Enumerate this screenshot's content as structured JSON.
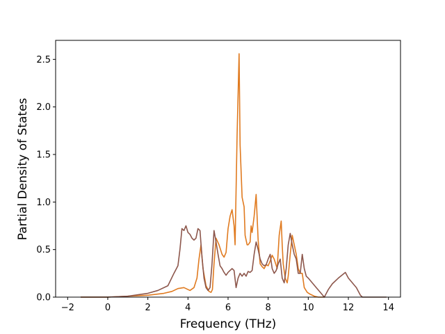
{
  "chart_data": {
    "type": "line",
    "title": "",
    "xlabel": "Frequency (THz)",
    "ylabel": "Partial Density of States",
    "xlim": [
      -2.6,
      14.6
    ],
    "ylim": [
      0.0,
      2.7
    ],
    "xticks": [
      -2,
      0,
      2,
      4,
      6,
      8,
      10,
      12,
      14
    ],
    "yticks": [
      0.0,
      0.5,
      1.0,
      1.5,
      2.0,
      2.5
    ],
    "xtick_labels": [
      "−2",
      "0",
      "2",
      "4",
      "6",
      "8",
      "10",
      "12",
      "14"
    ],
    "ytick_labels": [
      "0.0",
      "0.5",
      "1.0",
      "1.5",
      "2.0",
      "2.5"
    ],
    "grid": false,
    "legend": "none",
    "series": [
      {
        "color": "#e07a1f",
        "x": [
          -1.35,
          0.0,
          1.0,
          2.0,
          2.8,
          3.2,
          3.5,
          3.8,
          4.1,
          4.3,
          4.45,
          4.55,
          4.65,
          4.75,
          4.9,
          5.05,
          5.15,
          5.22,
          5.3,
          5.4,
          5.55,
          5.7,
          5.8,
          5.9,
          6.0,
          6.1,
          6.2,
          6.3,
          6.35,
          6.45,
          6.55,
          6.6,
          6.7,
          6.8,
          6.85,
          6.95,
          7.0,
          7.1,
          7.15,
          7.2,
          7.3,
          7.4,
          7.5,
          7.6,
          7.7,
          7.8,
          7.9,
          8.0,
          8.1,
          8.2,
          8.3,
          8.45,
          8.55,
          8.65,
          8.7,
          8.75,
          8.85,
          8.95,
          9.0,
          9.1,
          9.2,
          9.3,
          9.4,
          9.5,
          9.6,
          9.7,
          9.8,
          9.95,
          10.1,
          10.3,
          10.5,
          10.8
        ],
        "y": [
          0.0,
          0.0,
          0.01,
          0.02,
          0.04,
          0.06,
          0.09,
          0.1,
          0.07,
          0.1,
          0.2,
          0.4,
          0.55,
          0.3,
          0.12,
          0.06,
          0.05,
          0.08,
          0.35,
          0.62,
          0.55,
          0.45,
          0.42,
          0.47,
          0.72,
          0.85,
          0.92,
          0.75,
          0.55,
          1.7,
          2.56,
          1.6,
          1.05,
          0.95,
          0.65,
          0.55,
          0.55,
          0.58,
          0.75,
          0.68,
          0.85,
          1.08,
          0.6,
          0.35,
          0.32,
          0.3,
          0.34,
          0.33,
          0.38,
          0.44,
          0.4,
          0.3,
          0.65,
          0.8,
          0.55,
          0.35,
          0.2,
          0.15,
          0.22,
          0.45,
          0.65,
          0.55,
          0.45,
          0.3,
          0.25,
          0.25,
          0.1,
          0.05,
          0.03,
          0.01,
          0.0,
          0.0
        ]
      },
      {
        "color": "#8c564b",
        "x": [
          -1.35,
          0.0,
          1.0,
          2.0,
          2.5,
          3.0,
          3.3,
          3.5,
          3.6,
          3.7,
          3.8,
          3.9,
          4.0,
          4.1,
          4.2,
          4.3,
          4.4,
          4.5,
          4.6,
          4.7,
          4.8,
          4.9,
          5.0,
          5.1,
          5.2,
          5.3,
          5.4,
          5.5,
          5.6,
          5.7,
          5.8,
          5.9,
          6.0,
          6.1,
          6.2,
          6.3,
          6.4,
          6.5,
          6.6,
          6.7,
          6.8,
          6.9,
          7.0,
          7.1,
          7.2,
          7.3,
          7.4,
          7.5,
          7.6,
          7.7,
          7.8,
          7.9,
          8.0,
          8.1,
          8.2,
          8.3,
          8.4,
          8.5,
          8.6,
          8.7,
          8.8,
          8.9,
          9.0,
          9.1,
          9.2,
          9.3,
          9.4,
          9.5,
          9.6,
          9.7,
          9.8,
          9.9,
          10.0,
          10.2,
          10.4,
          10.6,
          10.8,
          11.0,
          11.2,
          11.5,
          11.85,
          12.0,
          12.2,
          12.4,
          12.6,
          12.7,
          13.9
        ],
        "y": [
          0.0,
          0.0,
          0.01,
          0.04,
          0.07,
          0.12,
          0.25,
          0.33,
          0.5,
          0.72,
          0.7,
          0.75,
          0.68,
          0.66,
          0.62,
          0.6,
          0.62,
          0.72,
          0.7,
          0.42,
          0.2,
          0.1,
          0.07,
          0.1,
          0.35,
          0.7,
          0.58,
          0.45,
          0.33,
          0.3,
          0.26,
          0.23,
          0.26,
          0.28,
          0.3,
          0.28,
          0.1,
          0.2,
          0.25,
          0.22,
          0.25,
          0.22,
          0.27,
          0.26,
          0.28,
          0.45,
          0.58,
          0.5,
          0.4,
          0.35,
          0.33,
          0.34,
          0.4,
          0.45,
          0.3,
          0.25,
          0.28,
          0.35,
          0.4,
          0.2,
          0.15,
          0.3,
          0.55,
          0.67,
          0.55,
          0.45,
          0.4,
          0.25,
          0.25,
          0.45,
          0.3,
          0.22,
          0.2,
          0.15,
          0.1,
          0.05,
          0.0,
          0.08,
          0.14,
          0.2,
          0.26,
          0.2,
          0.15,
          0.1,
          0.02,
          0.0,
          0.0
        ]
      }
    ]
  }
}
